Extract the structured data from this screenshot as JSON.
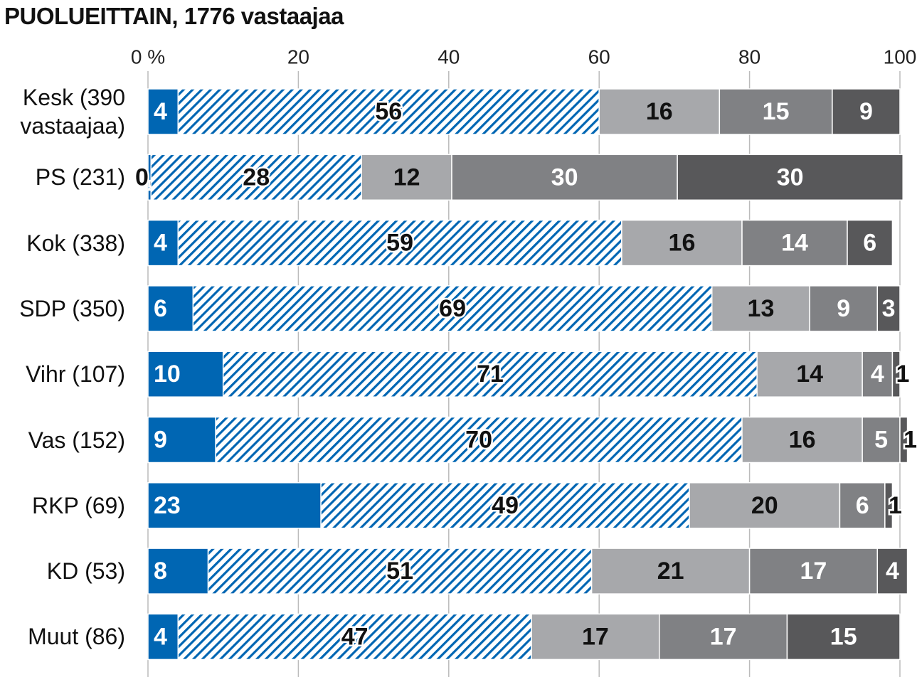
{
  "chart_data": {
    "type": "stacked-bar-horizontal",
    "title": "PUOLUEITTAIN, 1776 vastaajaa",
    "categories": [
      "Kesk (390 vastaajaa)",
      "PS (231)",
      "Kok (338)",
      "SDP (350)",
      "Vihr (107)",
      "Vas (152)",
      "RKP (69)",
      "KD (53)",
      "Muut (86)"
    ],
    "series": [
      {
        "color": "#0066b3",
        "label_color": "#ffffff",
        "values": [
          4,
          0.4,
          4,
          6,
          10,
          9,
          23,
          8,
          4
        ],
        "value_labels": [
          "4",
          "0,4",
          "4",
          "6",
          "10",
          "9",
          "23",
          "8",
          "4"
        ]
      },
      {
        "color": "#0066b3",
        "hatched": true,
        "label_color": "#111111",
        "values": [
          56,
          28,
          59,
          69,
          71,
          70,
          49,
          51,
          47
        ]
      },
      {
        "color": "#a7a8ab",
        "label_color": "#111111",
        "values": [
          16,
          12,
          16,
          13,
          14,
          16,
          20,
          21,
          17
        ]
      },
      {
        "color": "#808184",
        "label_color": "#ffffff",
        "values": [
          15,
          30,
          14,
          9,
          4,
          5,
          6,
          17,
          17
        ]
      },
      {
        "color": "#58585a",
        "label_color": "#ffffff",
        "values": [
          9,
          30,
          6,
          3,
          1,
          1,
          1,
          4,
          15
        ]
      }
    ],
    "xlim": [
      0,
      100
    ],
    "xticks": [
      {
        "value": 0,
        "label": "0 %"
      },
      20,
      40,
      60,
      80,
      100
    ],
    "grid": true
  }
}
